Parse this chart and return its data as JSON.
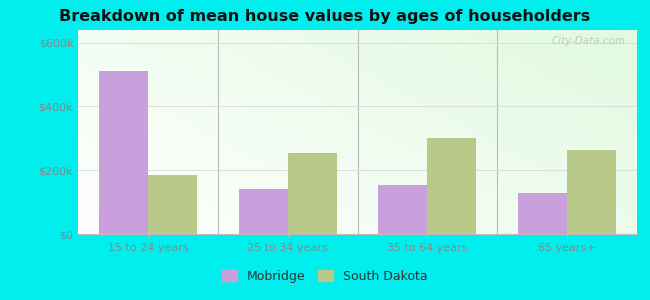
{
  "title": "Breakdown of mean house values by ages of householders",
  "categories": [
    "15 to 24 years",
    "25 to 34 years",
    "35 to 64 years",
    "65 years+"
  ],
  "mobridge_values": [
    510000,
    140000,
    155000,
    130000
  ],
  "south_dakota_values": [
    185000,
    255000,
    300000,
    265000
  ],
  "mobridge_color": "#c9a0dc",
  "south_dakota_color": "#b8c98a",
  "ylabel_ticks": [
    0,
    200000,
    400000,
    600000
  ],
  "ylabel_labels": [
    "$0",
    "$200k",
    "$400k",
    "$600k"
  ],
  "ylim": [
    0,
    640000
  ],
  "bg_color_topleft": "#ffffff",
  "bg_color_topright": "#c8e8c8",
  "bg_color_bottom": "#ffffff",
  "outer_background": "#00eeee",
  "legend_labels": [
    "Mobridge",
    "South Dakota"
  ],
  "bar_width": 0.35,
  "watermark": "City-Data.com",
  "grid_color": "#dddddd",
  "tick_color": "#888888",
  "spine_color": "#bbbbbb"
}
